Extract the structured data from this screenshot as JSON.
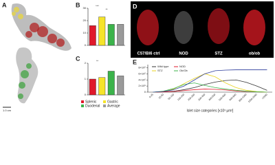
{
  "figure_a": {
    "panel": "A",
    "scale_bar": "1.0 cm"
  },
  "figure_d": {
    "panel": "D",
    "labels": [
      "C57/Bl6 ctrl",
      "NOD",
      "STZ",
      "ob/ob"
    ]
  },
  "chart_data": [
    {
      "type": "bar",
      "panel": "B",
      "values": [
        16,
        23,
        17,
        17
      ],
      "colors": [
        "#e0192b",
        "#f5e42a",
        "#3bb34a",
        "#9a9a9a"
      ],
      "ylim": [
        0,
        30
      ],
      "yticks": [
        0,
        10,
        20,
        30
      ],
      "annotations": [
        "***",
        "**"
      ]
    },
    {
      "type": "bar",
      "panel": "C",
      "categories": [
        "Splenic",
        "Gastric",
        "Duodenal",
        "Average"
      ],
      "values": [
        1.0,
        1.1,
        1.5,
        1.2
      ],
      "colors": [
        "#e0192b",
        "#f5e42a",
        "#3bb34a",
        "#9a9a9a"
      ],
      "ylim": [
        0,
        2
      ],
      "yticks": [
        0,
        1,
        2
      ],
      "annotations": [
        "**"
      ]
    },
    {
      "type": "line",
      "panel": "E",
      "xlabel": "Islet size categories [x10³ µm²]",
      "categories": [
        "0-25",
        "25-50",
        "50-100",
        "100-200",
        "200-300",
        "300-400",
        "400-500",
        "500-600",
        "600-800",
        "800-1000",
        "1000-2000",
        ">2000"
      ],
      "series": [
        {
          "name": "Wild type",
          "color": "#333333",
          "values": [
            0,
            10000,
            30000,
            80000,
            150000,
            250000,
            330000,
            380000,
            400000,
            320000,
            200000,
            60000
          ]
        },
        {
          "name": "NOD",
          "color": "#e0192b",
          "values": [
            0,
            5000,
            20000,
            50000,
            80000,
            100000,
            90000,
            70000,
            40000,
            20000,
            10000,
            0
          ]
        },
        {
          "name": "STZ",
          "color": "#e8d21c",
          "values": [
            0,
            20000,
            100000,
            280000,
            450000,
            600000,
            500000,
            300000,
            150000,
            60000,
            20000,
            0
          ]
        },
        {
          "name": "Ob/Ob",
          "color": "#3bb34a",
          "values": [
            0,
            30000,
            120000,
            250000,
            300000,
            220000,
            150000,
            100000,
            60000,
            30000,
            10000,
            0
          ]
        },
        {
          "name": null,
          "color": "#2b3a9a",
          "values": [
            0,
            20000,
            80000,
            200000,
            400000,
            600000,
            700000,
            720000,
            730000,
            730000,
            730000,
            730000
          ]
        }
      ],
      "ylim": [
        0,
        900000
      ],
      "yticks": [
        {
          "value": 0,
          "label": "0"
        },
        {
          "value": 200000,
          "label": "2×10⁵"
        },
        {
          "value": 400000,
          "label": "4×10⁵"
        },
        {
          "value": 600000,
          "label": "6×10⁵"
        },
        {
          "value": 800000,
          "label": "8×10⁵"
        }
      ]
    }
  ]
}
